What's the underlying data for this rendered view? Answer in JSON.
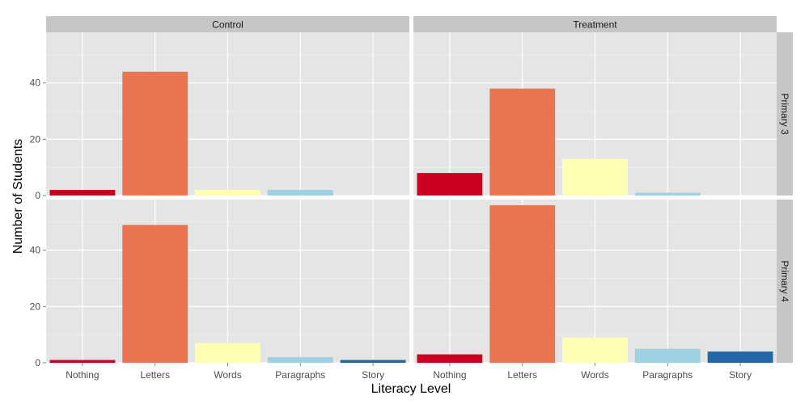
{
  "chart_data": {
    "type": "bar",
    "xlabel": "Literacy Level",
    "ylabel": "Number of Students",
    "categories": [
      "Nothing",
      "Letters",
      "Words",
      "Paragraphs",
      "Story"
    ],
    "category_colors": [
      "#ca0020",
      "#e97651",
      "#ffffb3",
      "#9ed2e3",
      "#2467a8"
    ],
    "ylim": [
      0,
      58
    ],
    "yticks": [
      0,
      20,
      40
    ],
    "col_facets": [
      "Control",
      "Treatment"
    ],
    "row_facets": [
      "Primary 3",
      "Primary 4"
    ],
    "panels": [
      {
        "col": "Control",
        "row": "Primary 3",
        "values": [
          2,
          44,
          2,
          2,
          0
        ]
      },
      {
        "col": "Treatment",
        "row": "Primary 3",
        "values": [
          8,
          38,
          13,
          1,
          0
        ]
      },
      {
        "col": "Control",
        "row": "Primary 4",
        "values": [
          1,
          49,
          7,
          2,
          1
        ]
      },
      {
        "col": "Treatment",
        "row": "Primary 4",
        "values": [
          3,
          56,
          9,
          5,
          4
        ]
      }
    ],
    "grid": true,
    "legend": "none"
  }
}
